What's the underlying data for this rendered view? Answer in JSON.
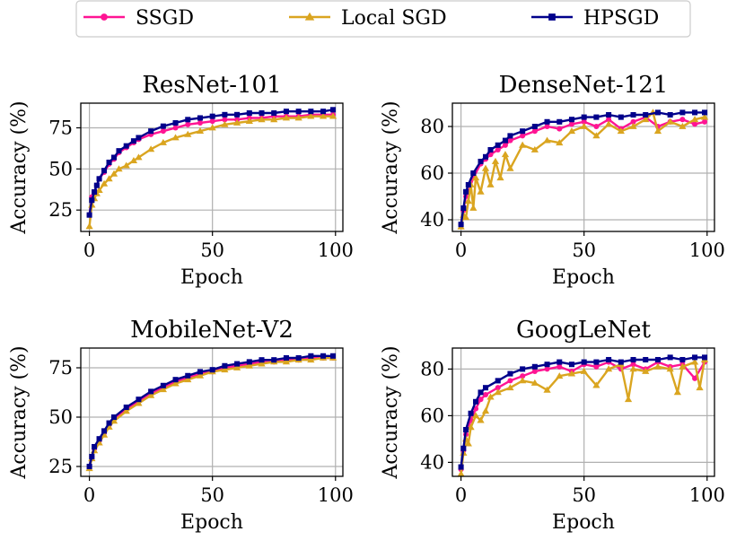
{
  "legend": {
    "entries": [
      {
        "name": "SSGD",
        "color": "#ff1493",
        "marker": "circle"
      },
      {
        "name": "Local SGD",
        "color": "#daa520",
        "marker": "triangle"
      },
      {
        "name": "HPSGD",
        "color": "#00008b",
        "marker": "square"
      }
    ]
  },
  "chart_data": [
    {
      "type": "line",
      "title": "ResNet-101",
      "xlabel": "Epoch",
      "ylabel": "Accuracy (%)",
      "xlim": [
        -3.5,
        103
      ],
      "ylim": [
        12,
        90
      ],
      "xticks": [
        0,
        50,
        100
      ],
      "yticks": [
        25,
        50,
        75
      ],
      "grid": true,
      "series": [
        {
          "name": "SSGD",
          "x": [
            0,
            1,
            2,
            3,
            4,
            6,
            8,
            10,
            12,
            15,
            18,
            20,
            25,
            30,
            35,
            40,
            45,
            50,
            55,
            60,
            65,
            70,
            75,
            80,
            85,
            90,
            95,
            99
          ],
          "y": [
            22,
            33,
            36,
            40,
            44,
            48,
            53,
            56,
            60,
            63,
            66,
            68,
            71,
            73,
            75,
            77,
            78,
            79,
            80,
            80,
            81,
            81,
            82,
            82,
            82,
            83,
            83,
            83
          ]
        },
        {
          "name": "Local SGD",
          "x": [
            0,
            1,
            2,
            3,
            4,
            6,
            8,
            10,
            12,
            15,
            18,
            20,
            25,
            30,
            35,
            40,
            45,
            50,
            55,
            60,
            65,
            70,
            75,
            80,
            85,
            90,
            95,
            99
          ],
          "y": [
            15,
            28,
            32,
            35,
            37,
            41,
            44,
            47,
            50,
            52,
            55,
            57,
            62,
            66,
            69,
            71,
            73,
            75,
            77,
            78,
            79,
            80,
            80,
            81,
            81,
            82,
            82,
            82
          ]
        },
        {
          "name": "HPSGD",
          "x": [
            0,
            1,
            2,
            3,
            4,
            6,
            8,
            10,
            12,
            15,
            18,
            20,
            25,
            30,
            35,
            40,
            45,
            50,
            55,
            60,
            65,
            70,
            75,
            80,
            85,
            90,
            95,
            99
          ],
          "y": [
            22,
            31,
            36,
            40,
            44,
            49,
            54,
            57,
            61,
            64,
            67,
            69,
            73,
            76,
            78,
            80,
            81,
            82,
            83,
            83,
            84,
            84,
            84,
            85,
            85,
            85,
            85,
            86
          ]
        }
      ]
    },
    {
      "type": "line",
      "title": "DenseNet-121",
      "xlabel": "Epoch",
      "ylabel": "Accuracy (%)",
      "xlim": [
        -3.5,
        103
      ],
      "ylim": [
        35,
        90
      ],
      "xticks": [
        0,
        50,
        100
      ],
      "yticks": [
        40,
        60,
        80
      ],
      "grid": true,
      "series": [
        {
          "name": "SSGD",
          "x": [
            0,
            1,
            2,
            3,
            5,
            8,
            10,
            12,
            15,
            18,
            20,
            25,
            30,
            35,
            40,
            45,
            50,
            55,
            60,
            65,
            70,
            75,
            80,
            85,
            90,
            95,
            99
          ],
          "y": [
            38,
            44,
            50,
            52,
            58,
            64,
            66,
            68,
            70,
            72,
            74,
            76,
            78,
            80,
            79,
            81,
            82,
            80,
            83,
            79,
            82,
            84,
            80,
            82,
            83,
            81,
            82
          ]
        },
        {
          "name": "Local SGD",
          "x": [
            0,
            1,
            2,
            3,
            4,
            5,
            6,
            8,
            10,
            12,
            14,
            16,
            18,
            20,
            25,
            30,
            35,
            40,
            45,
            50,
            55,
            60,
            65,
            70,
            75,
            78,
            80,
            85,
            90,
            95,
            99
          ],
          "y": [
            37,
            42,
            41,
            48,
            55,
            45,
            58,
            52,
            62,
            55,
            65,
            58,
            68,
            62,
            72,
            70,
            74,
            73,
            78,
            80,
            76,
            81,
            78,
            80,
            83,
            86,
            78,
            82,
            80,
            83,
            84
          ]
        },
        {
          "name": "HPSGD",
          "x": [
            0,
            1,
            2,
            3,
            5,
            8,
            10,
            12,
            15,
            18,
            20,
            25,
            30,
            35,
            40,
            45,
            50,
            55,
            60,
            65,
            70,
            75,
            80,
            85,
            90,
            95,
            99
          ],
          "y": [
            38,
            45,
            52,
            55,
            60,
            65,
            67,
            70,
            72,
            74,
            76,
            78,
            80,
            82,
            82,
            83,
            84,
            84,
            85,
            84,
            85,
            85,
            86,
            85,
            86,
            86,
            86
          ]
        }
      ]
    },
    {
      "type": "line",
      "title": "MobileNet-V2",
      "xlabel": "Epoch",
      "ylabel": "Accuracy (%)",
      "xlim": [
        -3.5,
        103
      ],
      "ylim": [
        20,
        85
      ],
      "xticks": [
        0,
        50,
        100
      ],
      "yticks": [
        25,
        50,
        75
      ],
      "grid": true,
      "series": [
        {
          "name": "SSGD",
          "x": [
            0,
            1,
            2,
            4,
            6,
            8,
            10,
            15,
            20,
            25,
            30,
            35,
            40,
            45,
            50,
            55,
            60,
            65,
            70,
            75,
            80,
            85,
            90,
            95,
            99
          ],
          "y": [
            25,
            30,
            34,
            38,
            42,
            46,
            49,
            54,
            58,
            62,
            65,
            68,
            70,
            72,
            73,
            75,
            76,
            77,
            78,
            78,
            79,
            79,
            80,
            80,
            80
          ]
        },
        {
          "name": "Local SGD",
          "x": [
            0,
            1,
            2,
            4,
            6,
            8,
            10,
            15,
            20,
            25,
            30,
            35,
            40,
            45,
            50,
            55,
            60,
            65,
            70,
            75,
            80,
            85,
            90,
            95,
            99
          ],
          "y": [
            24,
            29,
            33,
            37,
            41,
            45,
            48,
            53,
            57,
            61,
            64,
            67,
            69,
            71,
            73,
            74,
            75,
            76,
            77,
            78,
            78,
            79,
            79,
            80,
            80
          ]
        },
        {
          "name": "HPSGD",
          "x": [
            0,
            1,
            2,
            4,
            6,
            8,
            10,
            15,
            20,
            25,
            30,
            35,
            40,
            45,
            50,
            55,
            60,
            65,
            70,
            75,
            80,
            85,
            90,
            95,
            99
          ],
          "y": [
            25,
            30,
            35,
            39,
            43,
            47,
            50,
            55,
            59,
            63,
            66,
            69,
            71,
            73,
            74,
            76,
            77,
            78,
            79,
            79,
            80,
            80,
            81,
            81,
            81
          ]
        }
      ]
    },
    {
      "type": "line",
      "title": "GoogLeNet",
      "xlabel": "Epoch",
      "ylabel": "Accuracy (%)",
      "xlim": [
        -3.5,
        103
      ],
      "ylim": [
        34,
        89
      ],
      "xticks": [
        0,
        50,
        100
      ],
      "yticks": [
        40,
        60,
        80
      ],
      "grid": true,
      "series": [
        {
          "name": "SSGD",
          "x": [
            0,
            1,
            2,
            4,
            6,
            8,
            10,
            15,
            20,
            25,
            30,
            35,
            40,
            45,
            50,
            55,
            60,
            65,
            70,
            75,
            80,
            85,
            90,
            95,
            99
          ],
          "y": [
            37,
            45,
            52,
            58,
            63,
            67,
            69,
            72,
            75,
            77,
            79,
            80,
            81,
            79,
            82,
            81,
            83,
            80,
            82,
            80,
            83,
            81,
            82,
            76,
            83
          ]
        },
        {
          "name": "Local SGD",
          "x": [
            0,
            1,
            2,
            3,
            4,
            6,
            8,
            10,
            12,
            15,
            20,
            25,
            30,
            35,
            40,
            45,
            50,
            55,
            60,
            65,
            68,
            70,
            75,
            80,
            85,
            88,
            90,
            95,
            97,
            99
          ],
          "y": [
            35,
            44,
            50,
            48,
            55,
            60,
            58,
            62,
            68,
            70,
            72,
            75,
            74,
            71,
            77,
            78,
            79,
            73,
            80,
            82,
            67,
            80,
            79,
            81,
            80,
            70,
            81,
            83,
            72,
            84
          ]
        },
        {
          "name": "HPSGD",
          "x": [
            0,
            1,
            2,
            4,
            6,
            8,
            10,
            15,
            20,
            25,
            30,
            35,
            40,
            45,
            50,
            55,
            60,
            65,
            70,
            75,
            80,
            85,
            90,
            95,
            99
          ],
          "y": [
            38,
            46,
            54,
            61,
            66,
            70,
            72,
            75,
            78,
            80,
            81,
            82,
            83,
            82,
            83,
            83,
            84,
            83,
            84,
            84,
            84,
            85,
            84,
            85,
            85
          ]
        }
      ]
    }
  ]
}
